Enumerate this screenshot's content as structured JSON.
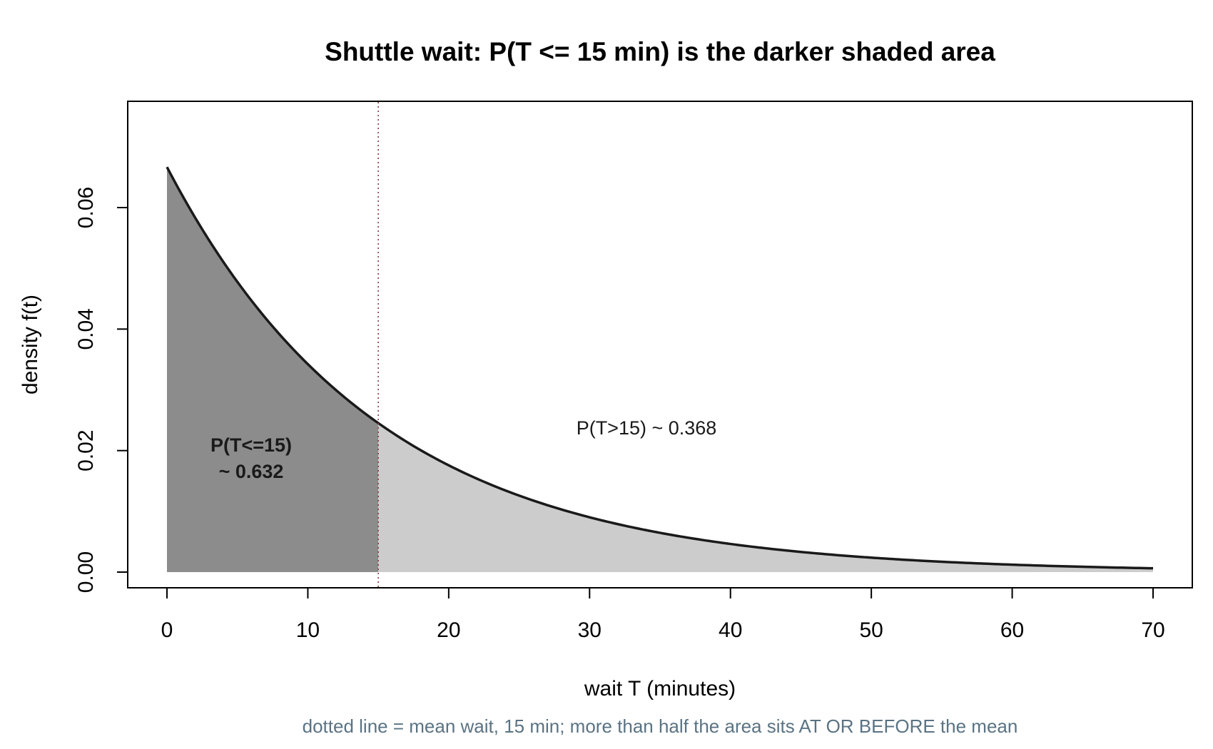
{
  "chart_data": {
    "type": "area",
    "title": "Shuttle wait: P(T <= 15 min) is the darker shaded area",
    "xlabel": "wait T (minutes)",
    "ylabel": "density f(t)",
    "footnote": "dotted line = mean wait, 15 min; more than half the area sits AT OR BEFORE the mean",
    "xlim": [
      0,
      70
    ],
    "ylim": [
      0,
      0.07
    ],
    "x_ticks": [
      0,
      10,
      20,
      30,
      40,
      50,
      60,
      70
    ],
    "y_ticks": [
      0.0,
      0.02,
      0.04,
      0.06
    ],
    "x_tick_labels": [
      "0",
      "10",
      "20",
      "30",
      "40",
      "50",
      "60",
      "70"
    ],
    "y_tick_labels": [
      "0.00",
      "0.02",
      "0.04",
      "0.06"
    ],
    "grid": false,
    "distribution": "exponential",
    "mean": 15,
    "x": [
      0,
      5,
      10,
      15,
      20,
      25,
      30,
      35,
      40,
      45,
      50,
      55,
      60,
      65,
      70
    ],
    "y": [
      0.0667,
      0.0478,
      0.0342,
      0.0245,
      0.0176,
      0.0126,
      0.009,
      0.0065,
      0.0046,
      0.0033,
      0.0024,
      0.0017,
      0.0012,
      0.0009,
      0.0006
    ],
    "regions": [
      {
        "label": "P(T<=15)",
        "value_label": "~ 0.632",
        "from": 0,
        "to": 15,
        "color": "#8c8c8c"
      },
      {
        "label": "P(T>15) ~ 0.368",
        "from": 15,
        "to": 70,
        "color": "#cccccc"
      }
    ],
    "reference_line": {
      "x": 15,
      "style": "dotted",
      "color": "#8b3a3a"
    },
    "curve_color": "#1a1a1a"
  }
}
